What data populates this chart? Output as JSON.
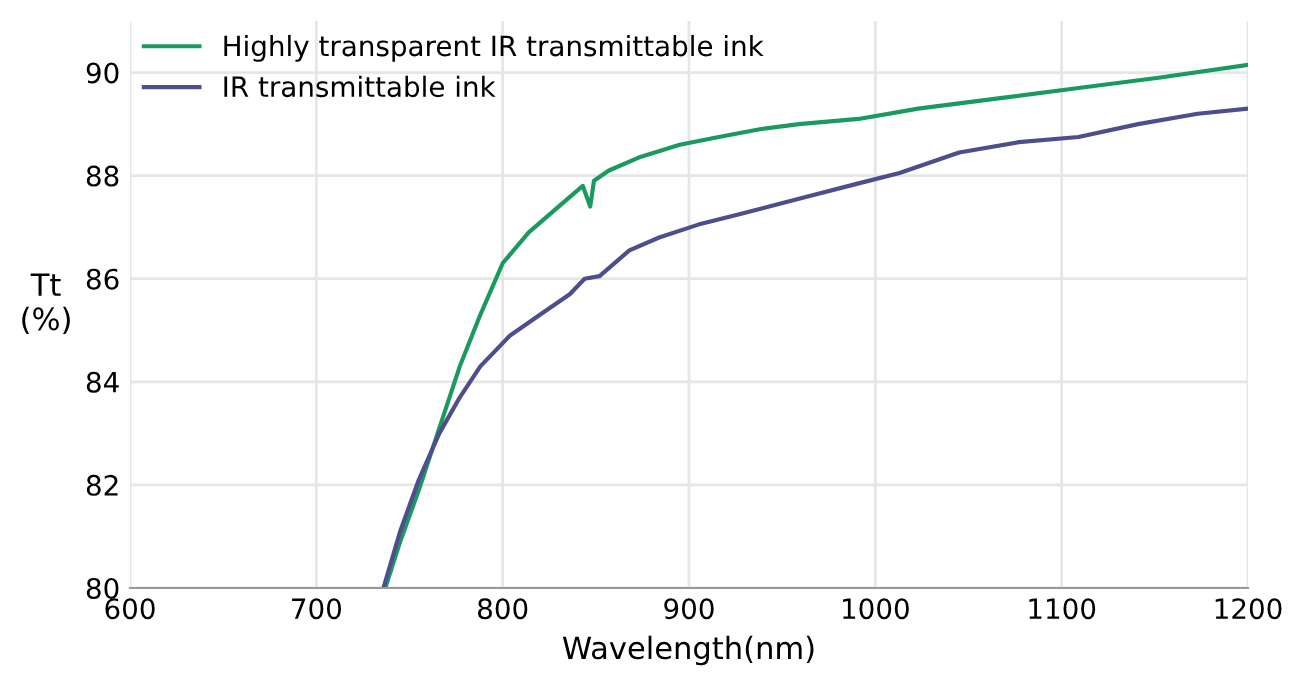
{
  "chart_data": {
    "type": "line",
    "xlabel": "Wavelength(nm)",
    "ylabel": "Tt\n(%)",
    "xlim": [
      600,
      1200
    ],
    "ylim": [
      80,
      91
    ],
    "xticks": [
      600,
      700,
      800,
      900,
      1000,
      1100,
      1200
    ],
    "yticks": [
      80,
      82,
      84,
      86,
      88,
      90
    ],
    "grid": true,
    "legend": "top left",
    "line_style": "solid",
    "marker": "none",
    "series": [
      {
        "name": "Highly transparent IR transmittable ink",
        "color": "#1a9a5e",
        "x": [
          737,
          745,
          755,
          766,
          777,
          788,
          800,
          814,
          830,
          843,
          847,
          849,
          857,
          873,
          895,
          916,
          938,
          959,
          991,
          1023,
          1066,
          1109,
          1152,
          1200
        ],
        "values": [
          80.0,
          80.9,
          81.9,
          83.1,
          84.3,
          85.3,
          86.3,
          86.9,
          87.4,
          87.8,
          87.4,
          87.9,
          88.1,
          88.35,
          88.6,
          88.75,
          88.9,
          89.0,
          89.1,
          89.3,
          89.5,
          89.7,
          89.9,
          90.15
        ]
      },
      {
        "name": "IR transmittable ink",
        "color": "#4f4e8c",
        "x": [
          736,
          745,
          755,
          766,
          777,
          788,
          804,
          820,
          836,
          844,
          852,
          868,
          884,
          905,
          927,
          959,
          991,
          1013,
          1045,
          1077,
          1109,
          1141,
          1173,
          1200
        ],
        "values": [
          80.0,
          81.1,
          82.1,
          83.0,
          83.7,
          84.3,
          84.9,
          85.3,
          85.7,
          86.0,
          86.05,
          86.55,
          86.8,
          87.05,
          87.25,
          87.55,
          87.85,
          88.05,
          88.45,
          88.65,
          88.75,
          89.0,
          89.2,
          89.3
        ]
      }
    ]
  }
}
